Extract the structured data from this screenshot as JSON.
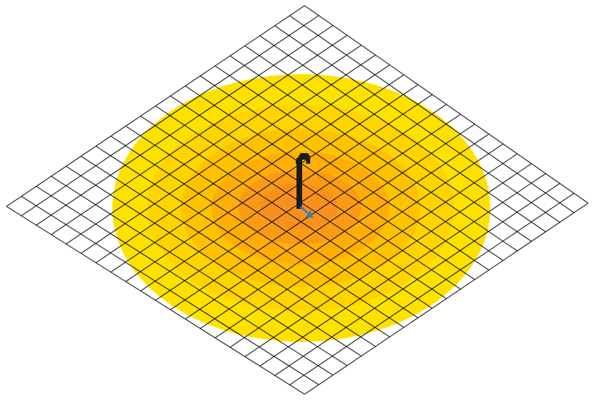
{
  "diagram": {
    "type": "isometric-illuminance-grid",
    "grid": {
      "cells_per_side": 20,
      "line_color": "#000000"
    },
    "contour_levels": [
      {
        "level": 1,
        "color": "#FFE100"
      },
      {
        "level": 2,
        "color": "#FFD400"
      },
      {
        "level": 3,
        "color": "#FFC200"
      },
      {
        "level": 4,
        "color": "#FFAE08"
      },
      {
        "level": 5,
        "color": "#FA9A15"
      },
      {
        "level": 6,
        "color": "#F7901C"
      }
    ],
    "fixture": {
      "icon": "pole-light-icon",
      "pole_color": "#1c1c1c",
      "direction_arrow_color": "#2f7ec2"
    }
  }
}
